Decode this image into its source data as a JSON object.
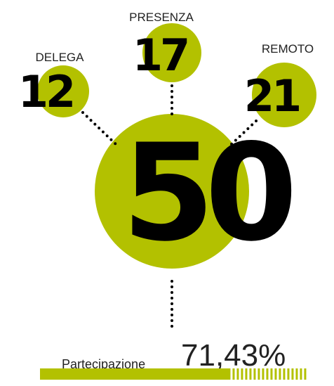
{
  "nodes": [
    {
      "label": "DELEGA",
      "value": 12
    },
    {
      "label": "PRESENZA",
      "value": 17
    },
    {
      "label": "REMOTO",
      "value": 21
    }
  ],
  "total": {
    "value": 50
  },
  "participation": {
    "label": "Partecipazione",
    "value": 71.43,
    "value_label": "71,43%"
  }
}
